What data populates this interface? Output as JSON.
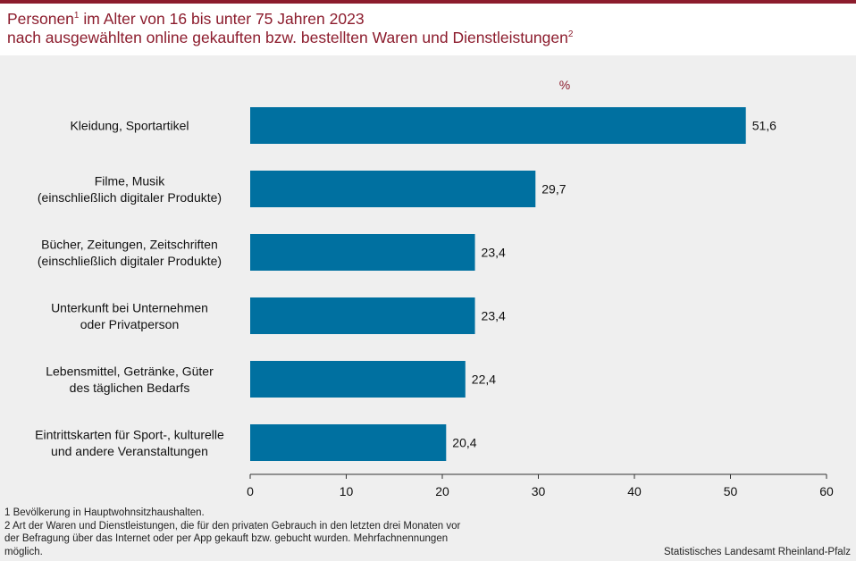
{
  "title": {
    "line1_a": "Personen",
    "line1_sup": "1",
    "line1_b": " im Alter von 16 bis unter 75 Jahren 2023",
    "line2_a": "nach ausgewählten online gekauften bzw. bestellten Waren und Dienstleistungen",
    "line2_sup": "2"
  },
  "chart_data": {
    "type": "bar",
    "orientation": "horizontal",
    "unit_label": "%",
    "categories": [
      [
        "Kleidung, Sportartikel"
      ],
      [
        "Filme, Musik",
        "(einschließlich digitaler Produkte)"
      ],
      [
        "Bücher, Zeitungen, Zeitschriften",
        "(einschließlich digitaler Produkte)"
      ],
      [
        "Unterkunft bei Unternehmen",
        "oder Privatperson"
      ],
      [
        "Lebensmittel, Getränke, Güter",
        "des täglichen Bedarfs"
      ],
      [
        "Eintrittskarten für Sport-, kulturelle",
        "und andere Veranstaltungen"
      ]
    ],
    "values": [
      51.6,
      29.7,
      23.4,
      23.4,
      22.4,
      20.4
    ],
    "value_labels": [
      "51,6",
      "29,7",
      "23,4",
      "23,4",
      "22,4",
      "20,4"
    ],
    "xlim": [
      0,
      60
    ],
    "xticks": [
      0,
      10,
      20,
      30,
      40,
      50,
      60
    ],
    "bar_color": "#0070a0",
    "grid": false
  },
  "footnotes": [
    "1 Bevölkerung  in Hauptwohnsitzhaushalten.",
    "2 Art der Waren und Dienstleistungen,  die für den privaten  Gebrauch in den letzten drei Monaten vor",
    "der Befragung  über das Internet  oder per App gekauft  bzw. gebucht wurden.  Mehrfachnennungen",
    "möglich."
  ],
  "source": "Statistisches Landesamt Rheinland-Pfalz",
  "colors": {
    "accent": "#8c1c2d",
    "bar": "#0070a0",
    "background": "#efefef"
  }
}
